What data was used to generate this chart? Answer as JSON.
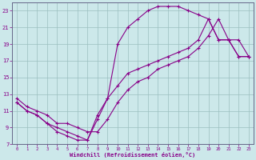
{
  "xlabel": "Windchill (Refroidissement éolien,°C)",
  "background_color": "#cce8ea",
  "grid_color": "#9bbfbf",
  "line_color": "#880088",
  "xlim": [
    -0.5,
    23.5
  ],
  "ylim": [
    7,
    24
  ],
  "xticks": [
    0,
    1,
    2,
    3,
    4,
    5,
    6,
    7,
    8,
    9,
    10,
    11,
    12,
    13,
    14,
    15,
    16,
    17,
    18,
    19,
    20,
    21,
    22,
    23
  ],
  "yticks": [
    7,
    9,
    11,
    13,
    15,
    17,
    19,
    21,
    23
  ],
  "line1_x": [
    0,
    1,
    2,
    3,
    4,
    5,
    6,
    7,
    8,
    9,
    10,
    11,
    12,
    13,
    14,
    15,
    16,
    17,
    18,
    19,
    20,
    21,
    22,
    23
  ],
  "line1_y": [
    12,
    11,
    10.5,
    9.5,
    8.5,
    8,
    7.5,
    7.5,
    10,
    12.5,
    14,
    15.5,
    16,
    16.5,
    17,
    17.5,
    18,
    18.5,
    19.5,
    22,
    19.5,
    19.5,
    17.5,
    17.5
  ],
  "line2_x": [
    0,
    1,
    2,
    3,
    4,
    5,
    6,
    7,
    8,
    9,
    10,
    11,
    12,
    13,
    14,
    15,
    16,
    17,
    18,
    19,
    20,
    21,
    22,
    23
  ],
  "line2_y": [
    12,
    11,
    10.5,
    9.5,
    9,
    8.5,
    8,
    7.5,
    10.5,
    12.5,
    19,
    21,
    22,
    23,
    23.5,
    23.5,
    23.5,
    23,
    22.5,
    22,
    19.5,
    19.5,
    17.5,
    17.5
  ],
  "line3_x": [
    0,
    1,
    2,
    3,
    4,
    5,
    6,
    7,
    8,
    9,
    10,
    11,
    12,
    13,
    14,
    15,
    16,
    17,
    18,
    19,
    20,
    21,
    22,
    23
  ],
  "line3_y": [
    12.5,
    11.5,
    11,
    10.5,
    9.5,
    9.5,
    9,
    8.5,
    8.5,
    10,
    12,
    13.5,
    14.5,
    15,
    16,
    16.5,
    17,
    17.5,
    18.5,
    20,
    22,
    19.5,
    19.5,
    17.5
  ]
}
